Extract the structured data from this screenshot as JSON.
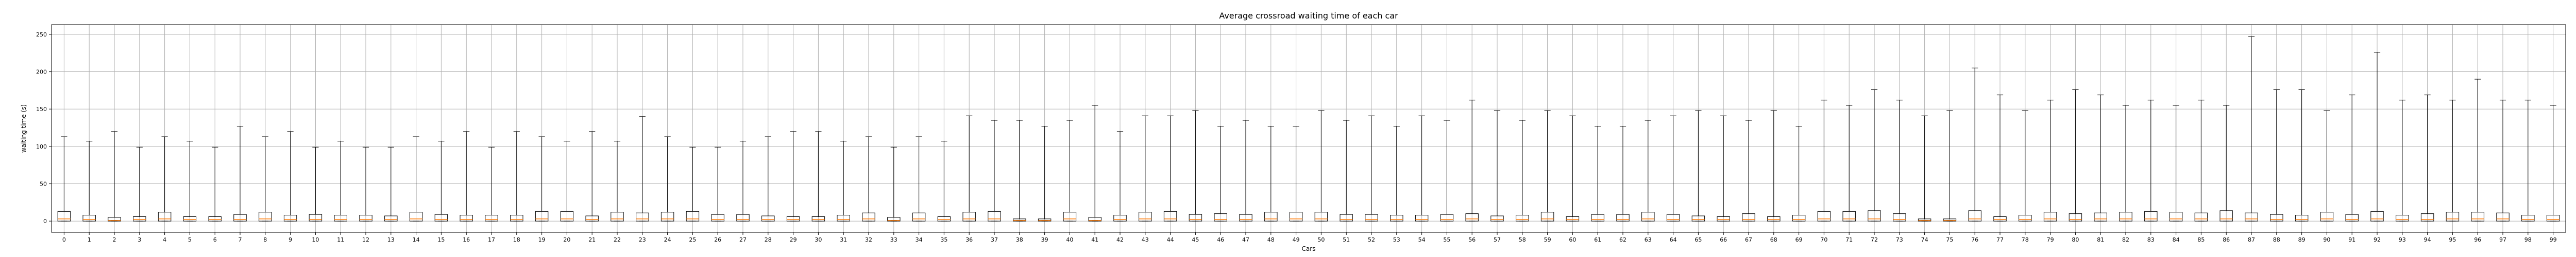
{
  "chart_data": {
    "type": "boxplot",
    "title": "Average crossroad waiting time of each car",
    "xlabel": "Cars",
    "ylabel": "waiting time (s)",
    "ylim": [
      -15,
      263
    ],
    "yticks": [
      0,
      50,
      100,
      150,
      200,
      250
    ],
    "grid": true,
    "median_color": "#ff7f0e",
    "categories": [
      "0",
      "1",
      "2",
      "3",
      "4",
      "5",
      "6",
      "7",
      "8",
      "9",
      "10",
      "11",
      "12",
      "13",
      "14",
      "15",
      "16",
      "17",
      "18",
      "19",
      "20",
      "21",
      "22",
      "23",
      "24",
      "25",
      "26",
      "27",
      "28",
      "29",
      "30",
      "31",
      "32",
      "33",
      "34",
      "35",
      "36",
      "37",
      "38",
      "39",
      "40",
      "41",
      "42",
      "43",
      "44",
      "45",
      "46",
      "47",
      "48",
      "49",
      "50",
      "51",
      "52",
      "53",
      "54",
      "55",
      "56",
      "57",
      "58",
      "59",
      "60",
      "61",
      "62",
      "63",
      "64",
      "65",
      "66",
      "67",
      "68",
      "69",
      "70",
      "71",
      "72",
      "73",
      "74",
      "75",
      "76",
      "77",
      "78",
      "79",
      "80",
      "81",
      "82",
      "83",
      "84",
      "85",
      "86",
      "87",
      "88",
      "89",
      "90",
      "91",
      "92",
      "93",
      "94",
      "95",
      "96",
      "97",
      "98",
      "99"
    ],
    "whisker_high": [
      113,
      107,
      120,
      99,
      113,
      107,
      99,
      127,
      113,
      120,
      99,
      107,
      99,
      99,
      113,
      107,
      120,
      99,
      120,
      113,
      107,
      120,
      107,
      140,
      113,
      99,
      99,
      107,
      113,
      120,
      120,
      107,
      113,
      99,
      113,
      107,
      141,
      135,
      135,
      127,
      135,
      155,
      120,
      141,
      141,
      148,
      127,
      135,
      127,
      127,
      148,
      135,
      141,
      127,
      141,
      135,
      162,
      148,
      135,
      148,
      141,
      127,
      127,
      135,
      141,
      148,
      141,
      135,
      148,
      127,
      162,
      155,
      176,
      162,
      141,
      148,
      205,
      169,
      148,
      162,
      176,
      169,
      155,
      162,
      155,
      162,
      155,
      247,
      176,
      176,
      148,
      169,
      226,
      162,
      169,
      162,
      190,
      162,
      162,
      155
    ],
    "q3": [
      13,
      8,
      5,
      6,
      12,
      6,
      6,
      9,
      12,
      8,
      9,
      8,
      8,
      7,
      12,
      9,
      8,
      8,
      8,
      13,
      13,
      7,
      12,
      11,
      12,
      13,
      9,
      9,
      7,
      6,
      6,
      8,
      11,
      5,
      11,
      6,
      12,
      13,
      3,
      3,
      12,
      5,
      8,
      12,
      13,
      9,
      10,
      9,
      12,
      12,
      12,
      9,
      9,
      8,
      8,
      9,
      10,
      7,
      8,
      12,
      6,
      9,
      9,
      12,
      9,
      7,
      6,
      10,
      6,
      8,
      13,
      13,
      14,
      10,
      3,
      3,
      14,
      6,
      8,
      12,
      10,
      11,
      12,
      13,
      12,
      11,
      14,
      11,
      9,
      8,
      12,
      9,
      13,
      8,
      10,
      12,
      12,
      11,
      8,
      8
    ],
    "median": [
      3,
      2,
      1,
      2,
      3,
      2,
      2,
      2,
      3,
      2,
      2,
      2,
      2,
      2,
      3,
      2,
      2,
      2,
      2,
      3,
      3,
      2,
      3,
      3,
      3,
      3,
      2,
      2,
      2,
      2,
      2,
      2,
      3,
      1,
      3,
      2,
      3,
      3,
      1,
      1,
      3,
      1,
      2,
      3,
      3,
      2,
      2,
      2,
      3,
      3,
      3,
      2,
      2,
      2,
      2,
      2,
      3,
      2,
      2,
      3,
      2,
      2,
      2,
      3,
      2,
      2,
      2,
      2,
      2,
      2,
      3,
      3,
      3,
      2,
      1,
      1,
      3,
      2,
      2,
      3,
      2,
      3,
      3,
      3,
      3,
      3,
      3,
      3,
      2,
      2,
      3,
      2,
      3,
      2,
      2,
      3,
      3,
      3,
      2,
      2
    ],
    "q1": [
      0,
      0,
      0,
      0,
      0,
      0,
      0,
      0,
      0,
      0,
      0,
      0,
      0,
      0,
      0,
      0,
      0,
      0,
      0,
      0,
      0,
      0,
      0,
      0,
      0,
      0,
      0,
      0,
      0,
      0,
      0,
      0,
      0,
      0,
      0,
      0,
      0,
      0,
      0,
      0,
      0,
      0,
      0,
      0,
      0,
      0,
      0,
      0,
      0,
      0,
      0,
      0,
      0,
      0,
      0,
      0,
      0,
      0,
      0,
      0,
      0,
      0,
      0,
      0,
      0,
      0,
      0,
      0,
      0,
      0,
      0,
      0,
      0,
      0,
      0,
      0,
      0,
      0,
      0,
      0,
      0,
      0,
      0,
      0,
      0,
      0,
      0,
      0,
      0,
      0,
      0,
      0,
      0,
      0,
      0,
      0,
      0,
      0,
      0,
      0
    ],
    "whisker_low": [
      0,
      0,
      0,
      0,
      0,
      0,
      0,
      0,
      0,
      0,
      0,
      0,
      0,
      0,
      0,
      0,
      0,
      0,
      0,
      0,
      0,
      0,
      0,
      0,
      0,
      0,
      0,
      0,
      0,
      0,
      0,
      0,
      0,
      0,
      0,
      0,
      0,
      0,
      0,
      0,
      0,
      0,
      0,
      0,
      0,
      0,
      0,
      0,
      0,
      0,
      0,
      0,
      0,
      0,
      0,
      0,
      0,
      0,
      0,
      0,
      0,
      0,
      0,
      0,
      0,
      0,
      0,
      0,
      0,
      0,
      0,
      0,
      0,
      0,
      0,
      0,
      0,
      0,
      0,
      0,
      0,
      0,
      0,
      0,
      0,
      0,
      0,
      0,
      0,
      0,
      0,
      0,
      0,
      0,
      0,
      0,
      0,
      0,
      0,
      0
    ]
  }
}
